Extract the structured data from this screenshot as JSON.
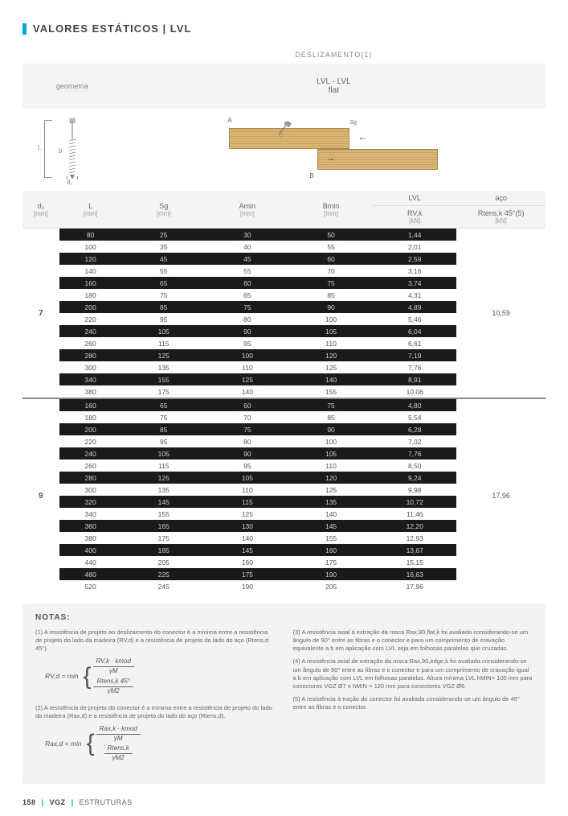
{
  "title": "VALORES ESTÁTICOS | LVL",
  "header": {
    "section_label": "DESLIZAMENTO(1)",
    "left_label": "geometria",
    "material_label": "LVL - LVL",
    "config_label": "flat"
  },
  "diagram_labels": {
    "L": "L",
    "b": "b",
    "d": "d₁",
    "A": "A",
    "B": "B",
    "angle": "45°",
    "sg": "Sg"
  },
  "columns": {
    "d1": "d₁",
    "d1_unit": "[mm]",
    "L": "L",
    "L_unit": "[mm]",
    "Sg": "Sg",
    "Sg_unit": "[mm]",
    "Amin": "Amin",
    "Amin_unit": "[mm]",
    "Bmin": "Bmin",
    "Bmin_unit": "[mm]",
    "lvl_hdr": "LVL",
    "Rvk": "RV,k",
    "Rvk_unit": "[kN]",
    "aco_hdr": "aço",
    "Rtens": "Rtens,k 45°(5)",
    "Rtens_unit": "[kN]"
  },
  "groups": [
    {
      "d1": "7",
      "aco": "10,59",
      "rows": [
        {
          "L": "80",
          "Sg": "25",
          "Amin": "30",
          "Bmin": "50",
          "Rvk": "1,44",
          "dark": true
        },
        {
          "L": "100",
          "Sg": "35",
          "Amin": "40",
          "Bmin": "55",
          "Rvk": "2,01"
        },
        {
          "L": "120",
          "Sg": "45",
          "Amin": "45",
          "Bmin": "60",
          "Rvk": "2,59",
          "dark": true
        },
        {
          "L": "140",
          "Sg": "55",
          "Amin": "55",
          "Bmin": "70",
          "Rvk": "3,16"
        },
        {
          "L": "160",
          "Sg": "65",
          "Amin": "60",
          "Bmin": "75",
          "Rvk": "3,74",
          "dark": true
        },
        {
          "L": "180",
          "Sg": "75",
          "Amin": "65",
          "Bmin": "85",
          "Rvk": "4,31"
        },
        {
          "L": "200",
          "Sg": "85",
          "Amin": "75",
          "Bmin": "90",
          "Rvk": "4,89",
          "dark": true
        },
        {
          "L": "220",
          "Sg": "95",
          "Amin": "80",
          "Bmin": "100",
          "Rvk": "5,46"
        },
        {
          "L": "240",
          "Sg": "105",
          "Amin": "90",
          "Bmin": "105",
          "Rvk": "6,04",
          "dark": true
        },
        {
          "L": "260",
          "Sg": "115",
          "Amin": "95",
          "Bmin": "110",
          "Rvk": "6,61"
        },
        {
          "L": "280",
          "Sg": "125",
          "Amin": "100",
          "Bmin": "120",
          "Rvk": "7,19",
          "dark": true
        },
        {
          "L": "300",
          "Sg": "135",
          "Amin": "110",
          "Bmin": "125",
          "Rvk": "7,76"
        },
        {
          "L": "340",
          "Sg": "155",
          "Amin": "125",
          "Bmin": "140",
          "Rvk": "8,91",
          "dark": true
        },
        {
          "L": "380",
          "Sg": "175",
          "Amin": "140",
          "Bmin": "155",
          "Rvk": "10,06"
        }
      ]
    },
    {
      "d1": "9",
      "aco": "17,96",
      "rows": [
        {
          "L": "160",
          "Sg": "65",
          "Amin": "60",
          "Bmin": "75",
          "Rvk": "4,80",
          "dark": true
        },
        {
          "L": "180",
          "Sg": "75",
          "Amin": "70",
          "Bmin": "85",
          "Rvk": "5,54"
        },
        {
          "L": "200",
          "Sg": "85",
          "Amin": "75",
          "Bmin": "90",
          "Rvk": "6,28",
          "dark": true
        },
        {
          "L": "220",
          "Sg": "95",
          "Amin": "80",
          "Bmin": "100",
          "Rvk": "7,02"
        },
        {
          "L": "240",
          "Sg": "105",
          "Amin": "90",
          "Bmin": "105",
          "Rvk": "7,76",
          "dark": true
        },
        {
          "L": "260",
          "Sg": "115",
          "Amin": "95",
          "Bmin": "110",
          "Rvk": "8,50"
        },
        {
          "L": "280",
          "Sg": "125",
          "Amin": "105",
          "Bmin": "120",
          "Rvk": "9,24",
          "dark": true
        },
        {
          "L": "300",
          "Sg": "135",
          "Amin": "110",
          "Bmin": "125",
          "Rvk": "9,98"
        },
        {
          "L": "320",
          "Sg": "145",
          "Amin": "115",
          "Bmin": "135",
          "Rvk": "10,72",
          "dark": true
        },
        {
          "L": "340",
          "Sg": "155",
          "Amin": "125",
          "Bmin": "140",
          "Rvk": "11,46"
        },
        {
          "L": "360",
          "Sg": "165",
          "Amin": "130",
          "Bmin": "145",
          "Rvk": "12,20",
          "dark": true
        },
        {
          "L": "380",
          "Sg": "175",
          "Amin": "140",
          "Bmin": "155",
          "Rvk": "12,93"
        },
        {
          "L": "400",
          "Sg": "185",
          "Amin": "145",
          "Bmin": "160",
          "Rvk": "13,67",
          "dark": true
        },
        {
          "L": "440",
          "Sg": "205",
          "Amin": "160",
          "Bmin": "175",
          "Rvk": "15,15"
        },
        {
          "L": "480",
          "Sg": "225",
          "Amin": "175",
          "Bmin": "190",
          "Rvk": "16,63",
          "dark": true
        },
        {
          "L": "520",
          "Sg": "245",
          "Amin": "190",
          "Bmin": "205",
          "Rvk": "17,96"
        }
      ]
    }
  ],
  "notas": {
    "title": "NOTAS:",
    "n1": "(1) A resistência de projeto ao deslizamento do conector é a mínima entre a resistência de projeto do lado da madeira (RV,d) e a resistência de projeto do lado do aço (Rtens,d 45°).",
    "formula1_lhs": "RV,d = min",
    "formula1_a_num": "RV,k · kmod",
    "formula1_a_den": "γM",
    "formula1_b_num": "Rtens,k 45°",
    "formula1_b_den": "γM2",
    "n2": "(2) A resistência de projeto do conector é a mínima entre a resistência de projeto do lado da madeira (Rax,d) e a resistência de projeto do lado do aço (Rtens,d).",
    "formula2_lhs": "Rax,d = min",
    "formula2_a_num": "Rax,k · kmod",
    "formula2_a_den": "γM",
    "formula2_b_num": "Rtens,k",
    "formula2_b_den": "γM2",
    "n3": "(3) A resistência axial à extração da rosca Rax,90,flat,k foi avaliada considerando-se um ângulo de 90° entre as fibras e o conector e para um comprimento de cravação equivalente a b em aplicação com LVL seja em folhosas paralelas que cruzadas.",
    "n4": "(4) A resistência axial de extração da rosca Rax,90,edge,k foi avaliada considerando-se um ângulo de 90° entre as fibras e o conector e para um comprimento de cravação igual a b em aplicação com LVL em folhosas paralelas. Altura mínima LVL hMIN= 100 mm para conectores VGZ Ø7 e hMIN = 120 mm para conectores VGZ Ø9.",
    "n5": "(5) A resistência à tração do conector foi avaliada considerando-se um ângulo de 45° entre as fibras e o conector."
  },
  "footer": {
    "page": "158",
    "brand": "VGZ",
    "section": "ESTRUTURAS"
  },
  "colors": {
    "accent": "#00a9d4",
    "wood": "#d9b677",
    "dark_row": "#1a1a1a",
    "notes_bg": "#f3f3f3"
  }
}
